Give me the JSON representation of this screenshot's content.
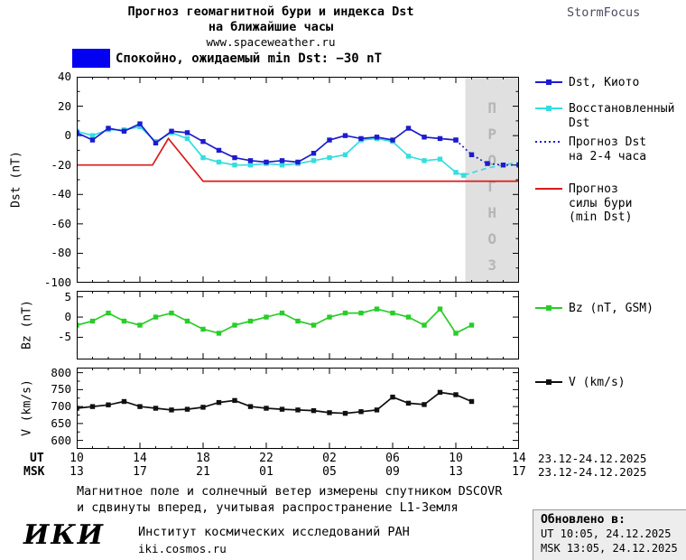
{
  "header": {
    "title_line1": "Прогноз геомагнитной бури и индекса Dst",
    "title_line2": "на ближайшие часы",
    "website": "www.spaceweather.ru",
    "brand": "StormFocus"
  },
  "banner": {
    "swatch_color": "#0202f0",
    "text": "Спокойно, ожидаемый min Dst: −30 nT"
  },
  "chart_data": [
    {
      "type": "line",
      "name": "dst-forecast",
      "ylabel": "Dst (nT)",
      "ylim": [
        -100,
        40
      ],
      "yticks": [
        40,
        20,
        0,
        -20,
        -40,
        -60,
        -80,
        -100
      ],
      "xlim": [
        10,
        38
      ],
      "xticks": [
        10,
        14,
        18,
        22,
        26,
        30,
        34,
        38
      ],
      "grid": false,
      "legend_position": "right",
      "forecast_region": {
        "x_start": 34.6,
        "x_end": 38,
        "label": "ПРОГНОЗ",
        "fill": "#e0e0e0",
        "label_color": "#b5b5b5"
      },
      "series": [
        {
          "name": "Восстановленный Dst",
          "color": "#35dede",
          "style": "solid",
          "marker": "square",
          "x": [
            10,
            11,
            12,
            13,
            14,
            15,
            16,
            17,
            18,
            19,
            20,
            21,
            22,
            23,
            24,
            25,
            26,
            27,
            28,
            29,
            30,
            31,
            32,
            33,
            34,
            34.5
          ],
          "values": [
            3,
            0,
            4,
            4,
            6,
            -4,
            2,
            -2,
            -15,
            -18,
            -20,
            -20,
            -19,
            -20,
            -19,
            -17,
            -15,
            -13,
            -3,
            -2,
            -4,
            -14,
            -17,
            -16,
            -25,
            -27
          ]
        },
        {
          "name": "Восстановленный Dst (прогноз)",
          "color": "#35dede",
          "style": "dashed",
          "marker": "none",
          "x": [
            34.5,
            36,
            38
          ],
          "values": [
            -27,
            -22,
            -18
          ]
        },
        {
          "name": "Dst, Киото",
          "color": "#1c1ccd",
          "style": "solid",
          "marker": "square",
          "x": [
            10,
            11,
            12,
            13,
            14,
            15,
            16,
            17,
            18,
            19,
            20,
            21,
            22,
            23,
            24,
            25,
            26,
            27,
            28,
            29,
            30,
            31,
            32,
            33,
            34
          ],
          "values": [
            2,
            -3,
            5,
            3,
            8,
            -5,
            3,
            2,
            -4,
            -10,
            -15,
            -17,
            -18,
            -17,
            -18,
            -12,
            -3,
            0,
            -2,
            -1,
            -3,
            5,
            -1,
            -2,
            -3
          ]
        },
        {
          "name": "Прогноз Dst на 2-4 часа",
          "color": "#1c1ccd",
          "style": "dotted",
          "marker": "square",
          "x": [
            34,
            35,
            36,
            37,
            38
          ],
          "values": [
            -3,
            -13,
            -19,
            -20,
            -20
          ]
        },
        {
          "name": "Прогноз силы бури (min Dst)",
          "color": "#da1b1b",
          "style": "solid",
          "marker": "none",
          "x": [
            10,
            14.8,
            15.8,
            18,
            38
          ],
          "values": [
            -20,
            -20,
            -2,
            -31,
            -31
          ]
        }
      ]
    },
    {
      "type": "line",
      "name": "bz",
      "ylabel": "Bz (nT)",
      "ylim": [
        -10.5,
        6.5
      ],
      "yticks": [
        5,
        0,
        -5
      ],
      "xlim": [
        10,
        38
      ],
      "xticks": [
        10,
        14,
        18,
        22,
        26,
        30,
        34,
        38
      ],
      "grid": false,
      "series": [
        {
          "name": "Bz (nT, GSM)",
          "color": "#28cd28",
          "style": "solid",
          "marker": "square",
          "x": [
            10,
            11,
            12,
            13,
            14,
            15,
            16,
            17,
            18,
            19,
            20,
            21,
            22,
            23,
            24,
            25,
            26,
            27,
            28,
            29,
            30,
            31,
            32,
            33,
            34,
            35
          ],
          "values": [
            -2,
            -1,
            1,
            -1,
            -2,
            0,
            1,
            -1,
            -3,
            -4,
            -2,
            -1,
            0,
            1,
            -1,
            -2,
            0,
            1,
            1,
            2,
            1,
            0,
            -2,
            2,
            -4,
            -2
          ]
        }
      ]
    },
    {
      "type": "line",
      "name": "solar-wind-speed",
      "ylabel": "V (km/s)",
      "ylim": [
        575,
        815
      ],
      "yticks": [
        800,
        750,
        700,
        650,
        600
      ],
      "xlim": [
        10,
        38
      ],
      "xticks": [
        10,
        14,
        18,
        22,
        26,
        30,
        34,
        38
      ],
      "grid": false,
      "series": [
        {
          "name": "V (km/s)",
          "color": "#101010",
          "style": "solid",
          "marker": "square",
          "x": [
            10,
            11,
            12,
            13,
            14,
            15,
            16,
            17,
            18,
            19,
            20,
            21,
            22,
            23,
            24,
            25,
            26,
            27,
            28,
            29,
            30,
            31,
            32,
            33,
            34,
            35
          ],
          "values": [
            695,
            700,
            705,
            715,
            700,
            695,
            690,
            692,
            698,
            712,
            718,
            700,
            695,
            692,
            690,
            688,
            682,
            680,
            685,
            690,
            728,
            710,
            706,
            742,
            735,
            715
          ]
        }
      ]
    }
  ],
  "legend": {
    "items": [
      {
        "label_lines": [
          "Dst, Киото"
        ],
        "color": "#1c1ccd",
        "style": "solid",
        "marker": true
      },
      {
        "label_lines": [
          "Восстановленный",
          "Dst"
        ],
        "color": "#35dede",
        "style": "solid",
        "marker": true
      },
      {
        "label_lines": [
          "Прогноз Dst",
          "на 2-4 часа"
        ],
        "color": "#1c1ccd",
        "style": "dotted",
        "marker": false
      },
      {
        "label_lines": [
          "Прогноз",
          "силы бури",
          "(min Dst)"
        ],
        "color": "#da1b1b",
        "style": "solid",
        "marker": false
      },
      {
        "label_lines": [
          "Bz (nT, GSM)"
        ],
        "color": "#28cd28",
        "style": "solid",
        "marker": true
      },
      {
        "label_lines": [
          "V (km/s)"
        ],
        "color": "#101010",
        "style": "solid",
        "marker": true
      }
    ]
  },
  "xaxis": {
    "ut_label": "UT",
    "msk_label": "MSK",
    "ut_ticks": [
      "10",
      "14",
      "18",
      "22",
      "02",
      "06",
      "10",
      "14"
    ],
    "msk_ticks": [
      "13",
      "17",
      "21",
      "01",
      "05",
      "09",
      "13",
      "17"
    ],
    "ut_date_range": "23.12-24.12.2025",
    "msk_date_range": "23.12-24.12.2025"
  },
  "footnote": {
    "line1": "Магнитное поле и солнечный ветер измерены спутником DSCOVR",
    "line2": "и сдвинуты вперед, учитывая распространение L1-Земля"
  },
  "footer": {
    "logo_text": "ИКИ",
    "institute": "Институт космических исследований РАН",
    "website": "iki.cosmos.ru",
    "updated_label": "Обновлено в:",
    "updated_ut": "UT  10:05, 24.12.2025",
    "updated_msk": "MSK 13:05, 24.12.2025"
  }
}
